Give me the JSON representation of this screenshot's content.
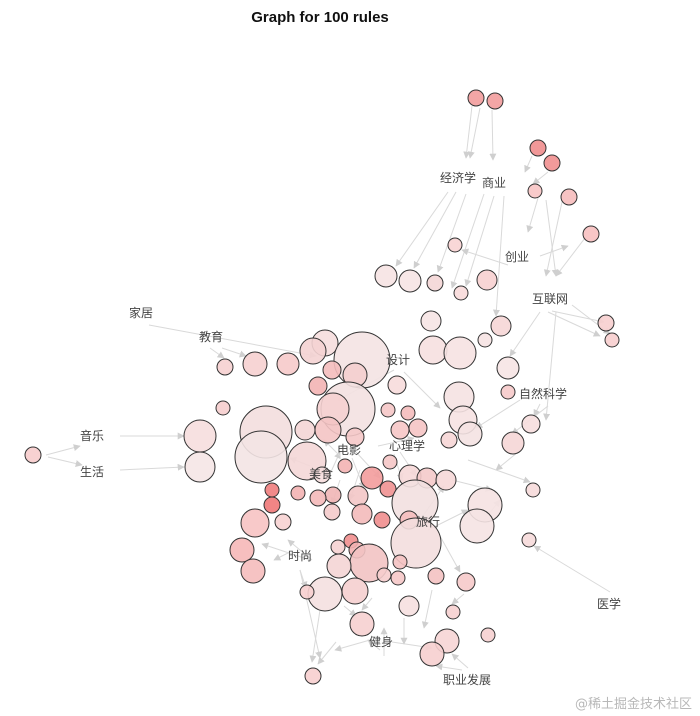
{
  "chart_data": {
    "type": "network",
    "title": "Graph for 100 rules",
    "items": [
      "经济学",
      "商业",
      "创业",
      "互联网",
      "家居",
      "教育",
      "设计",
      "自然科学",
      "音乐",
      "生活",
      "电影",
      "心理学",
      "美食",
      "旅行",
      "时尚",
      "医学",
      "健身",
      "职业发展"
    ],
    "rules_count": 100,
    "watermark": "@稀土掘金技术社区"
  }
}
